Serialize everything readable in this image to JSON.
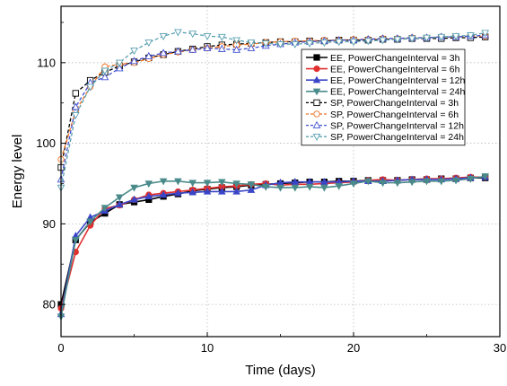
{
  "chart_data": {
    "type": "line",
    "xlabel": "Time (days)",
    "ylabel": "Energy level",
    "xlim": [
      0,
      30
    ],
    "ylim": [
      76,
      117
    ],
    "xticks": [
      "0",
      "10",
      "20",
      "30"
    ],
    "yticks": [
      "80",
      "90",
      "100",
      "110"
    ],
    "ytick_values": [
      80,
      90,
      100,
      110
    ],
    "xtick_values": [
      0,
      10,
      20,
      30
    ],
    "grid": "dotted horizontal at y ticks",
    "legend_position": "top-right",
    "series": [
      {
        "name": "EE, PowerChangeInterval = 3h",
        "color": "#000000",
        "line": "solid",
        "marker": "square",
        "x": [
          0,
          1,
          2,
          3,
          4,
          5,
          6,
          7,
          8,
          9,
          10,
          11,
          12,
          13,
          14,
          15,
          16,
          17,
          18,
          19,
          20,
          21,
          22,
          23,
          24,
          25,
          26,
          27,
          28,
          29
        ],
        "y": [
          80.0,
          88.0,
          90.2,
          91.3,
          92.4,
          92.7,
          93.0,
          93.4,
          93.7,
          94.1,
          94.3,
          94.5,
          94.6,
          94.8,
          94.9,
          95.0,
          95.1,
          95.2,
          95.2,
          95.3,
          95.3,
          95.4,
          95.4,
          95.4,
          95.5,
          95.5,
          95.6,
          95.6,
          95.7,
          95.7
        ]
      },
      {
        "name": "EE, PowerChangeInterval = 6h",
        "color": "#e03030",
        "line": "solid",
        "marker": "circle",
        "x": [
          0,
          1,
          2,
          3,
          4,
          5,
          6,
          7,
          8,
          9,
          10,
          11,
          12,
          13,
          14,
          15,
          16,
          17,
          18,
          19,
          20,
          21,
          22,
          23,
          24,
          25,
          26,
          27,
          28,
          29
        ],
        "y": [
          79.5,
          86.5,
          89.8,
          91.9,
          92.3,
          93.0,
          93.6,
          93.8,
          94.0,
          94.2,
          94.4,
          94.6,
          94.7,
          94.9,
          95.0,
          94.8,
          94.9,
          94.9,
          95.0,
          95.1,
          95.2,
          95.4,
          95.5,
          95.4,
          95.5,
          95.6,
          95.6,
          95.7,
          95.8,
          95.8
        ]
      },
      {
        "name": "EE, PowerChangeInterval = 12h",
        "color": "#3a46c8",
        "line": "solid",
        "marker": "triangle-up",
        "x": [
          0,
          1,
          2,
          3,
          4,
          5,
          6,
          7,
          8,
          9,
          10,
          11,
          12,
          13,
          14,
          15,
          16,
          17,
          18,
          19,
          20,
          21,
          22,
          23,
          24,
          25,
          26,
          27,
          28,
          29
        ],
        "y": [
          78.8,
          88.5,
          90.8,
          91.6,
          92.4,
          93.0,
          93.4,
          93.6,
          93.8,
          93.9,
          94.0,
          94.0,
          94.0,
          94.2,
          94.8,
          95.1,
          95.2,
          95.2,
          95.2,
          95.2,
          95.3,
          95.3,
          95.3,
          95.4,
          95.5,
          95.5,
          95.5,
          95.6,
          95.7,
          95.8
        ]
      },
      {
        "name": "EE, PowerChangeInterval = 24h",
        "color": "#4a8a8a",
        "line": "solid",
        "marker": "triangle-down",
        "x": [
          0,
          1,
          2,
          3,
          4,
          5,
          6,
          7,
          8,
          9,
          10,
          11,
          12,
          13,
          14,
          15,
          16,
          17,
          18,
          19,
          20,
          21,
          22,
          23,
          24,
          25,
          26,
          27,
          28,
          29
        ],
        "y": [
          78.5,
          88.0,
          90.3,
          92.0,
          93.3,
          94.5,
          95.0,
          95.3,
          95.3,
          95.1,
          95.1,
          95.2,
          95.0,
          94.9,
          94.6,
          94.5,
          94.5,
          94.6,
          94.5,
          94.7,
          95.0,
          95.3,
          95.1,
          95.1,
          95.2,
          95.3,
          95.3,
          95.4,
          95.6,
          95.9
        ]
      },
      {
        "name": "SP, PowerChangeInterval = 3h",
        "color": "#000000",
        "line": "dashed",
        "marker": "open-square",
        "x": [
          0,
          1,
          2,
          3,
          4,
          5,
          6,
          7,
          8,
          9,
          10,
          11,
          12,
          13,
          14,
          15,
          16,
          17,
          18,
          19,
          20,
          21,
          22,
          23,
          24,
          25,
          26,
          27,
          28,
          29
        ],
        "y": [
          97.0,
          106.2,
          107.8,
          108.8,
          109.6,
          110.1,
          110.6,
          111.0,
          111.4,
          111.7,
          112.0,
          112.2,
          112.3,
          112.4,
          112.5,
          112.6,
          112.6,
          112.7,
          112.7,
          112.8,
          112.8,
          112.8,
          112.9,
          112.9,
          113.0,
          113.0,
          113.0,
          113.1,
          113.1,
          113.2
        ]
      },
      {
        "name": "SP, PowerChangeInterval = 6h",
        "color": "#f07020",
        "line": "dashed",
        "marker": "open-circle",
        "x": [
          0,
          1,
          2,
          3,
          4,
          5,
          6,
          7,
          8,
          9,
          10,
          11,
          12,
          13,
          14,
          15,
          16,
          17,
          18,
          19,
          20,
          21,
          22,
          23,
          24,
          25,
          26,
          27,
          28,
          29
        ],
        "y": [
          98.0,
          104.0,
          107.0,
          109.5,
          109.8,
          110.0,
          110.5,
          111.0,
          111.3,
          111.6,
          111.8,
          112.0,
          112.2,
          112.3,
          112.5,
          112.6,
          112.7,
          112.7,
          112.8,
          112.8,
          112.9,
          112.9,
          113.0,
          113.0,
          113.1,
          113.1,
          113.2,
          113.2,
          113.3,
          113.3
        ]
      },
      {
        "name": "SP, PowerChangeInterval = 12h",
        "color": "#4050d0",
        "line": "dashed",
        "marker": "open-triangle-up",
        "x": [
          0,
          1,
          2,
          3,
          4,
          5,
          6,
          7,
          8,
          9,
          10,
          11,
          12,
          13,
          14,
          15,
          16,
          17,
          18,
          19,
          20,
          21,
          22,
          23,
          24,
          25,
          26,
          27,
          28,
          29
        ],
        "y": [
          95.5,
          104.5,
          107.5,
          108.2,
          109.3,
          110.2,
          110.8,
          111.2,
          111.4,
          111.6,
          111.8,
          111.7,
          111.6,
          111.8,
          112.1,
          112.3,
          112.5,
          112.6,
          112.7,
          112.8,
          112.8,
          112.9,
          113.0,
          113.0,
          113.1,
          113.1,
          113.2,
          113.2,
          113.3,
          113.4
        ]
      },
      {
        "name": "SP, PowerChangeInterval = 24h",
        "color": "#5aa0b0",
        "line": "dashed",
        "marker": "open-triangle-down",
        "x": [
          0,
          1,
          2,
          3,
          4,
          5,
          6,
          7,
          8,
          9,
          10,
          11,
          12,
          13,
          14,
          15,
          16,
          17,
          18,
          19,
          20,
          21,
          22,
          23,
          24,
          25,
          26,
          27,
          28,
          29
        ],
        "y": [
          94.5,
          103.5,
          107.0,
          109.0,
          110.0,
          111.5,
          112.5,
          113.3,
          113.8,
          113.6,
          113.3,
          113.2,
          112.8,
          112.5,
          112.4,
          112.3,
          112.3,
          112.4,
          112.5,
          112.6,
          112.6,
          112.7,
          112.8,
          112.9,
          113.0,
          113.1,
          113.2,
          113.3,
          113.4,
          113.7
        ]
      }
    ]
  }
}
